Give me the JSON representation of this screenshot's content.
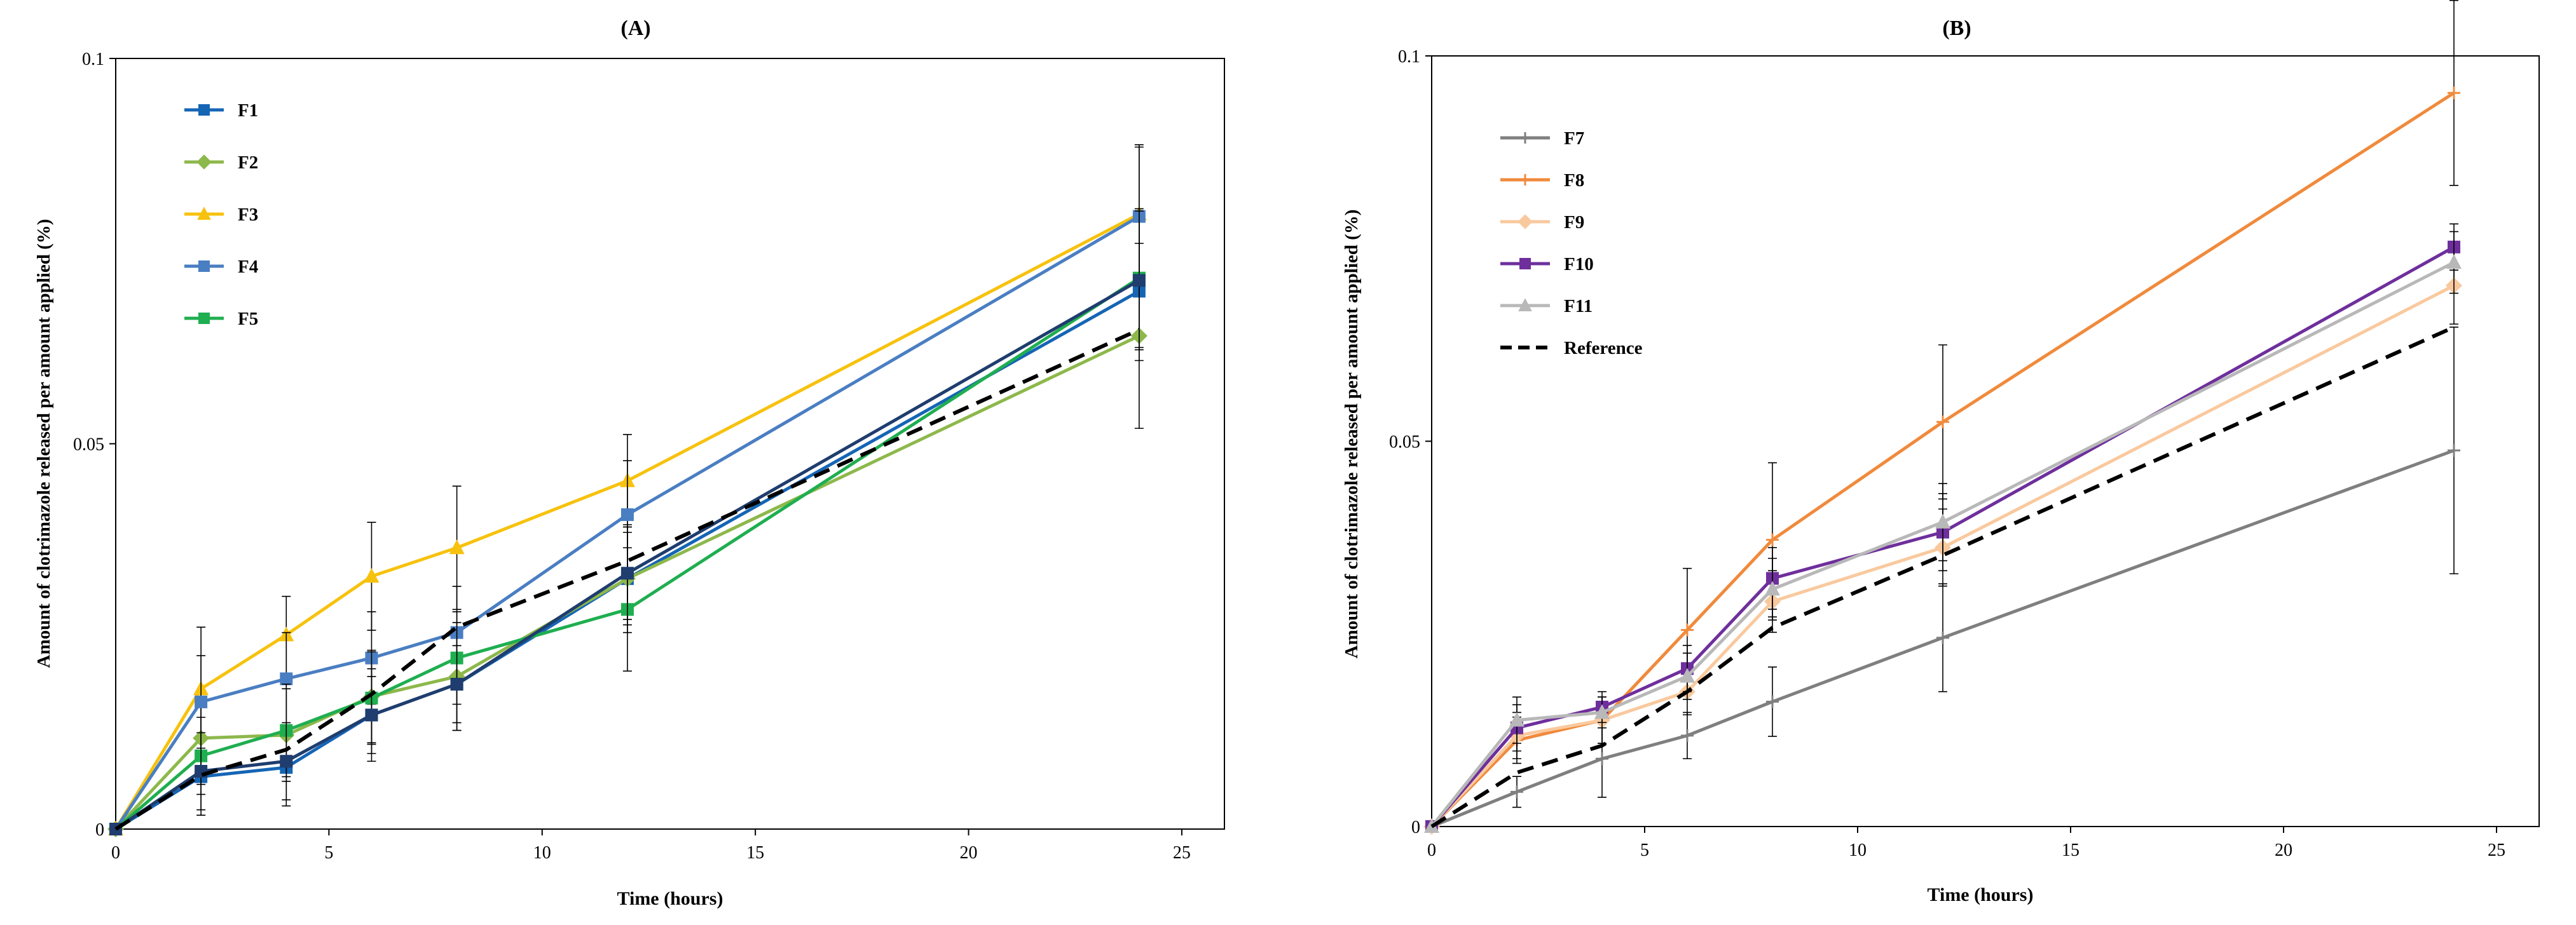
{
  "chart_data": [
    {
      "type": "line",
      "title": "(A)",
      "xlabel": "Time (hours)",
      "ylabel": "Amount of clotrimazole released per amount applied (%)",
      "xlim": [
        0,
        26
      ],
      "ylim": [
        0,
        0.1
      ],
      "xticks": [
        "0",
        "5",
        "10",
        "15",
        "20",
        "25"
      ],
      "xtick_values": [
        0,
        5,
        10,
        15,
        20,
        25
      ],
      "yticks": [
        "0",
        "0.05",
        "0.1"
      ],
      "ytick_values": [
        0,
        0.05,
        0.1
      ],
      "legend_position": "top-left",
      "x": [
        0,
        2,
        4,
        6,
        8,
        12,
        24
      ],
      "series": [
        {
          "name": "F1",
          "color": "#1565b5",
          "marker": "square",
          "values": [
            0,
            0.0068,
            0.008,
            0.0148,
            0.0188,
            0.0325,
            0.0698
          ],
          "errors": [
            0,
            0.005,
            0.005,
            0.006,
            0.006,
            0.006,
            0.009
          ]
        },
        {
          "name": "F2",
          "color": "#8db84b",
          "marker": "diamond",
          "values": [
            0,
            0.0118,
            0.0122,
            0.0172,
            0.0198,
            0.0325,
            0.064
          ],
          "errors": [
            0,
            0.006,
            0.006,
            0.006,
            0.007,
            0.007,
            0.012
          ]
        },
        {
          "name": "F3",
          "color": "#f7c20e",
          "marker": "triangle",
          "values": [
            0,
            0.0182,
            0.0252,
            0.0328,
            0.0365,
            0.0452,
            0.0798
          ],
          "errors": [
            0,
            0.008,
            0.005,
            0.007,
            0.008,
            0.006,
            0.009
          ]
        },
        {
          "name": "F4",
          "color": "#4a7ec2",
          "marker": "square",
          "values": [
            0,
            0.0165,
            0.0195,
            0.0222,
            0.0255,
            0.0408,
            0.0795
          ],
          "errors": [
            0,
            0.006,
            0.006,
            0.006,
            0.006,
            0.007,
            0.009
          ]
        },
        {
          "name": "F5",
          "color": "#1fae50",
          "marker": "square",
          "values": [
            0,
            0.0095,
            0.0128,
            0.017,
            0.0222,
            0.0285,
            0.0715
          ],
          "errors": [
            0,
            0.005,
            0.006,
            0.006,
            0.006,
            0.008,
            0.009
          ]
        },
        {
          "name": "",
          "color": "#1f3d6e",
          "marker": "square",
          "values": [
            0,
            0.0075,
            0.0088,
            0.0148,
            0.0188,
            0.0332,
            0.0712
          ],
          "errors": [
            0,
            0.005,
            0.005,
            0.005,
            0.005,
            0.006,
            0.009
          ]
        },
        {
          "name": "",
          "color": "#000000",
          "marker": "none",
          "dashed": true,
          "values": [
            0,
            0.007,
            0.0103,
            0.0175,
            0.0262,
            0.0348,
            0.0648
          ],
          "errors": [
            0,
            0,
            0,
            0,
            0,
            0,
            0
          ]
        }
      ]
    },
    {
      "type": "line",
      "title": "(B)",
      "xlabel": "Time (hours)",
      "ylabel": "Amount of clotrimazole released per amount applied (%)",
      "xlim": [
        0,
        26
      ],
      "ylim": [
        0,
        0.1
      ],
      "xticks": [
        "0",
        "5",
        "10",
        "15",
        "20",
        "25"
      ],
      "xtick_values": [
        0,
        5,
        10,
        15,
        20,
        25
      ],
      "yticks": [
        "0",
        "0.05",
        "0.1"
      ],
      "ytick_values": [
        0,
        0.05,
        0.1
      ],
      "legend_position": "top-left",
      "x": [
        0,
        2,
        4,
        6,
        8,
        12,
        24
      ],
      "series": [
        {
          "name": "F7",
          "color": "#7f7f7f",
          "marker": "cross",
          "values": [
            0,
            0.0045,
            0.0088,
            0.0118,
            0.0162,
            0.0245,
            0.0488
          ],
          "errors": [
            0,
            0.002,
            0.005,
            0.003,
            0.0045,
            0.007,
            0.016
          ]
        },
        {
          "name": "F8",
          "color": "#f08a3c",
          "marker": "cross",
          "values": [
            0,
            0.0112,
            0.0138,
            0.0255,
            0.0372,
            0.0525,
            0.0952
          ],
          "errors": [
            0,
            0.003,
            0.003,
            0.008,
            0.01,
            0.01,
            0.012
          ]
        },
        {
          "name": "F9",
          "color": "#f9c99e",
          "marker": "diamond",
          "values": [
            0,
            0.0118,
            0.0138,
            0.0175,
            0.0292,
            0.0362,
            0.0702
          ],
          "errors": [
            0,
            0.003,
            0.003,
            0.003,
            0.004,
            0.005,
            0.005
          ]
        },
        {
          "name": "F10",
          "color": "#6e2f9c",
          "marker": "square",
          "values": [
            0,
            0.0128,
            0.0155,
            0.0205,
            0.0322,
            0.0382,
            0.0752
          ],
          "errors": [
            0,
            0.003,
            0.002,
            0.003,
            0.004,
            0.005,
            0.003
          ]
        },
        {
          "name": "F11",
          "color": "#b8b8b8",
          "marker": "triangle",
          "values": [
            0,
            0.0138,
            0.0148,
            0.0195,
            0.0308,
            0.0395,
            0.0732
          ],
          "errors": [
            0,
            0.003,
            0.002,
            0.003,
            0.004,
            0.005,
            0.004
          ]
        },
        {
          "name": "Reference",
          "color": "#000000",
          "marker": "none",
          "dashed": true,
          "values": [
            0,
            0.007,
            0.0105,
            0.0175,
            0.0258,
            0.0352,
            0.0648
          ],
          "errors": [
            0,
            0,
            0,
            0,
            0,
            0,
            0
          ]
        }
      ]
    }
  ]
}
